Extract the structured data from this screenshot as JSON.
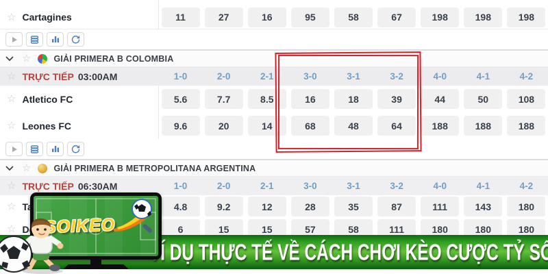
{
  "score_columns": [
    "1-0",
    "2-0",
    "2-1",
    "3-0",
    "3-1",
    "3-2",
    "4-0",
    "4-1",
    "4-2"
  ],
  "cartagines": {
    "name": "Cartagines",
    "odds": [
      "11",
      "27",
      "16",
      "95",
      "58",
      "67",
      "198",
      "198",
      "198"
    ]
  },
  "toolbar": {
    "buttons": [
      "play",
      "odds-view",
      "statistics",
      "refresh"
    ]
  },
  "colombia": {
    "league": "GIẢI PRIMERA B COLOMBIA",
    "live_label": "TRỰC TIẾP",
    "time": "03:00AM",
    "team1": {
      "name": "Atletico FC",
      "odds": [
        "5.6",
        "7.7",
        "8.5",
        "16",
        "18",
        "39",
        "44",
        "50",
        "108"
      ]
    },
    "team2": {
      "name": "Leones FC",
      "odds": [
        "9.6",
        "20",
        "14",
        "68",
        "48",
        "64",
        "188",
        "188",
        "188"
      ]
    }
  },
  "argentina": {
    "league": "GIẢI PRIMERA B METROPOLITANA ARGENTINA",
    "live_label": "TRỰC TIẾP",
    "time": "06:30AM",
    "team1": {
      "name": "Tall",
      "odds": [
        "4.8",
        "9.2",
        "12",
        "28",
        "35",
        "87",
        "111",
        "143",
        "180"
      ]
    },
    "team2": {
      "name": "De",
      "odds": [
        "6",
        "15",
        "15",
        "57",
        "58",
        "111",
        "180",
        "180",
        "180"
      ]
    }
  },
  "banner": {
    "text": "VÍ DỤ THỰC TẾ VỀ CÁCH CHƠI KÈO CƯỢC TỶ SỐ"
  },
  "tv": {
    "logo": "SOIKEO"
  },
  "annotation": {
    "highlighted_columns": [
      "3-0",
      "3-1",
      "3-2"
    ],
    "color": "#d22128"
  },
  "colors": {
    "score_header_blue": "#6f9fc8",
    "live_red": "#b14540",
    "odd_chip_bg": "#f0f0f1",
    "banner_green": "#2f9e1f",
    "highlight_red": "#d22128"
  }
}
